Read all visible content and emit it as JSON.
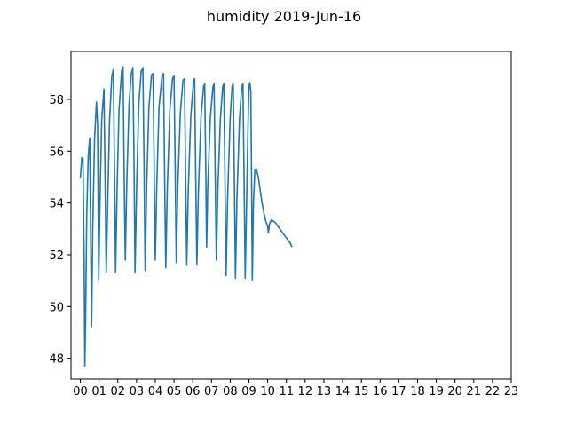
{
  "chart_data": {
    "type": "line",
    "title": "humidity 2019-Jun-16",
    "xlabel": "",
    "ylabel": "",
    "x_unit": "hour of day",
    "xlim": [
      -0.5,
      23.0
    ],
    "ylim": [
      47.2,
      59.85
    ],
    "x_ticks": [
      0,
      1,
      2,
      3,
      4,
      5,
      6,
      7,
      8,
      9,
      10,
      11,
      12,
      13,
      14,
      15,
      16,
      17,
      18,
      19,
      20,
      21,
      22,
      23
    ],
    "x_tick_labels": [
      "00",
      "01",
      "02",
      "03",
      "04",
      "05",
      "06",
      "07",
      "08",
      "09",
      "10",
      "11",
      "12",
      "13",
      "14",
      "15",
      "16",
      "17",
      "18",
      "19",
      "20",
      "21",
      "22",
      "23"
    ],
    "y_ticks": [
      48,
      50,
      52,
      54,
      56,
      58
    ],
    "y_tick_labels": [
      "48",
      "50",
      "52",
      "54",
      "56",
      "58"
    ],
    "grid": false,
    "series": [
      {
        "color": "#1f77b4",
        "points": [
          [
            0.0,
            54.95
          ],
          [
            0.08,
            55.75
          ],
          [
            0.14,
            55.7
          ],
          [
            0.2,
            51.8
          ],
          [
            0.24,
            47.7
          ],
          [
            0.28,
            49.5
          ],
          [
            0.34,
            53.5
          ],
          [
            0.42,
            55.8
          ],
          [
            0.5,
            56.5
          ],
          [
            0.56,
            52.0
          ],
          [
            0.6,
            49.2
          ],
          [
            0.66,
            53.0
          ],
          [
            0.76,
            56.5
          ],
          [
            0.86,
            57.9
          ],
          [
            0.92,
            57.0
          ],
          [
            0.98,
            51.0
          ],
          [
            1.04,
            53.8
          ],
          [
            1.14,
            57.2
          ],
          [
            1.26,
            58.4
          ],
          [
            1.32,
            55.0
          ],
          [
            1.38,
            51.3
          ],
          [
            1.46,
            54.0
          ],
          [
            1.56,
            57.2
          ],
          [
            1.68,
            58.9
          ],
          [
            1.76,
            59.15
          ],
          [
            1.82,
            55.5
          ],
          [
            1.88,
            51.3
          ],
          [
            1.96,
            54.5
          ],
          [
            2.06,
            57.5
          ],
          [
            2.2,
            59.1
          ],
          [
            2.28,
            59.25
          ],
          [
            2.34,
            55.0
          ],
          [
            2.4,
            51.8
          ],
          [
            2.48,
            54.8
          ],
          [
            2.6,
            57.8
          ],
          [
            2.72,
            59.0
          ],
          [
            2.8,
            59.2
          ],
          [
            2.86,
            56.0
          ],
          [
            2.92,
            51.3
          ],
          [
            3.0,
            54.5
          ],
          [
            3.12,
            57.8
          ],
          [
            3.25,
            59.1
          ],
          [
            3.34,
            59.2
          ],
          [
            3.4,
            55.5
          ],
          [
            3.46,
            51.4
          ],
          [
            3.54,
            54.6
          ],
          [
            3.66,
            57.7
          ],
          [
            3.8,
            58.95
          ],
          [
            3.88,
            59.0
          ],
          [
            3.94,
            55.4
          ],
          [
            4.0,
            51.8
          ],
          [
            4.08,
            54.7
          ],
          [
            4.2,
            57.7
          ],
          [
            4.36,
            58.9
          ],
          [
            4.44,
            59.0
          ],
          [
            4.5,
            55.0
          ],
          [
            4.56,
            51.5
          ],
          [
            4.64,
            54.5
          ],
          [
            4.78,
            57.6
          ],
          [
            4.92,
            58.8
          ],
          [
            5.0,
            58.9
          ],
          [
            5.06,
            55.5
          ],
          [
            5.12,
            51.7
          ],
          [
            5.2,
            54.6
          ],
          [
            5.34,
            57.5
          ],
          [
            5.48,
            58.75
          ],
          [
            5.56,
            58.8
          ],
          [
            5.62,
            55.0
          ],
          [
            5.68,
            51.6
          ],
          [
            5.76,
            54.5
          ],
          [
            5.9,
            57.4
          ],
          [
            6.04,
            58.7
          ],
          [
            6.1,
            58.8
          ],
          [
            6.16,
            55.0
          ],
          [
            6.22,
            51.6
          ],
          [
            6.3,
            54.4
          ],
          [
            6.44,
            57.3
          ],
          [
            6.58,
            58.5
          ],
          [
            6.64,
            58.6
          ],
          [
            6.7,
            55.0
          ],
          [
            6.74,
            52.3
          ],
          [
            6.8,
            54.6
          ],
          [
            6.94,
            57.3
          ],
          [
            7.08,
            58.5
          ],
          [
            7.14,
            58.6
          ],
          [
            7.2,
            55.0
          ],
          [
            7.26,
            51.8
          ],
          [
            7.34,
            54.5
          ],
          [
            7.48,
            57.3
          ],
          [
            7.6,
            58.5
          ],
          [
            7.66,
            58.6
          ],
          [
            7.72,
            55.0
          ],
          [
            7.78,
            51.2
          ],
          [
            7.86,
            54.2
          ],
          [
            8.0,
            57.3
          ],
          [
            8.1,
            58.5
          ],
          [
            8.16,
            58.6
          ],
          [
            8.22,
            55.0
          ],
          [
            8.28,
            51.1
          ],
          [
            8.36,
            54.2
          ],
          [
            8.5,
            57.3
          ],
          [
            8.62,
            58.5
          ],
          [
            8.68,
            58.6
          ],
          [
            8.74,
            55.0
          ],
          [
            8.8,
            51.1
          ],
          [
            8.88,
            54.2
          ],
          [
            8.96,
            57.3
          ],
          [
            9.0,
            58.5
          ],
          [
            9.05,
            58.65
          ],
          [
            9.1,
            58.3
          ],
          [
            9.14,
            55.0
          ],
          [
            9.18,
            51.0
          ],
          [
            9.24,
            54.0
          ],
          [
            9.32,
            55.3
          ],
          [
            9.4,
            55.3
          ],
          [
            9.5,
            55.0
          ],
          [
            9.6,
            54.5
          ],
          [
            9.7,
            54.0
          ],
          [
            9.8,
            53.6
          ],
          [
            9.9,
            53.3
          ],
          [
            10.0,
            53.1
          ],
          [
            10.04,
            52.85
          ],
          [
            10.1,
            53.2
          ],
          [
            10.2,
            53.35
          ],
          [
            10.3,
            53.3
          ],
          [
            10.4,
            53.25
          ],
          [
            10.5,
            53.15
          ],
          [
            10.6,
            53.05
          ],
          [
            10.7,
            52.95
          ],
          [
            10.8,
            52.85
          ],
          [
            10.9,
            52.75
          ],
          [
            11.0,
            52.65
          ],
          [
            11.1,
            52.55
          ],
          [
            11.2,
            52.45
          ],
          [
            11.3,
            52.3
          ]
        ]
      }
    ]
  }
}
